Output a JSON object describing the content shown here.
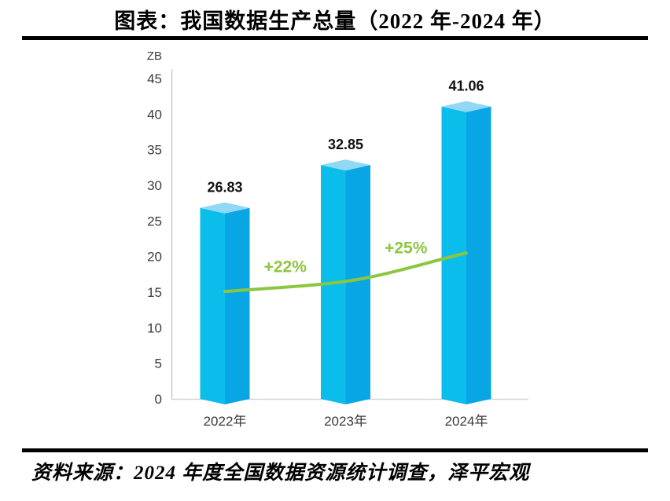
{
  "page": {
    "title": "图表：我国数据生产总量（2022 年-2024 年）",
    "source": "资料来源：2024 年度全国数据资源统计调查，泽平宏观"
  },
  "chart_data": {
    "type": "bar",
    "title": "图表：我国数据生产总量（2022 年-2024 年）",
    "unit_label": "ZB",
    "categories": [
      "2022年",
      "2023年",
      "2024年"
    ],
    "values": [
      26.83,
      32.85,
      41.06
    ],
    "value_labels": [
      "26.83",
      "32.85",
      "41.06"
    ],
    "growth_labels": [
      "+22%",
      "+25%"
    ],
    "growth_line_values": [
      15.1,
      16.5,
      20.5
    ],
    "ylim": [
      0,
      45
    ],
    "ytick_step": 5,
    "grid": false,
    "legend": false,
    "bar_style": "3d-box",
    "colors": {
      "bar_left": "#0ABDEA",
      "bar_right": "#08A6E4",
      "bar_top": "#90D8F4",
      "line": "#8CC63F",
      "axis_spine": "#C9C9C9",
      "axis_base": "#D6D6D6",
      "tick_text": "#3B3B3B",
      "value_text": "#111111"
    }
  }
}
